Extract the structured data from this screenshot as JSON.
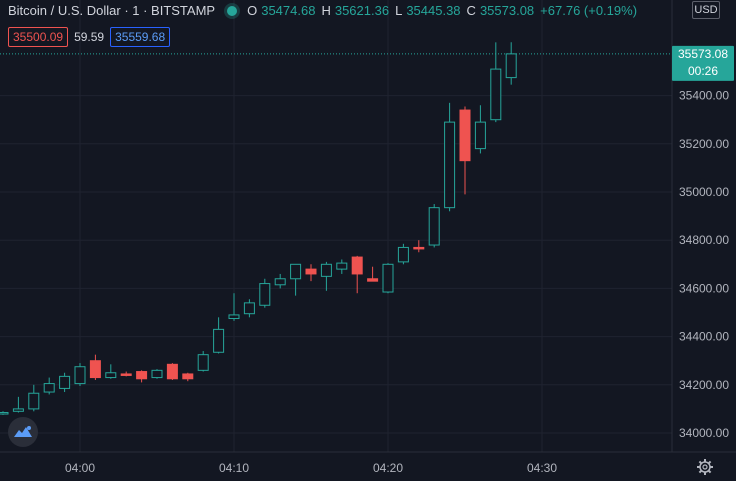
{
  "header": {
    "symbol_title": "Bitcoin / U.S. Dollar · 1 · BITSTAMP",
    "o_label": "O",
    "o_value": "35474.68",
    "h_label": "H",
    "h_value": "35621.36",
    "l_label": "L",
    "l_value": "35445.38",
    "c_label": "C",
    "c_value": "35573.08",
    "change": "+67.76 (+0.19%)",
    "bid": "35500.09",
    "spread": "59.59",
    "ask": "35559.68",
    "currency": "USD"
  },
  "price_tag": {
    "value": "35573.08",
    "countdown": "00:26"
  },
  "colors": {
    "up": "#26a69a",
    "down": "#ef5350",
    "background": "#131722",
    "grid": "#1f2330"
  },
  "icons": [
    "tradingview-logo-icon",
    "settings-gear-icon",
    "status-dot-icon"
  ],
  "chart_data": {
    "type": "candlestick",
    "y_ticks": [
      "34000.00",
      "34200.00",
      "34400.00",
      "34600.00",
      "34800.00",
      "35000.00",
      "35200.00",
      "35400.00"
    ],
    "y_tick_values": [
      34000,
      34200,
      34400,
      34600,
      34800,
      35000,
      35200,
      35400
    ],
    "x_ticks": [
      "04:00",
      "04:10",
      "04:20",
      "04:30"
    ],
    "x_tick_minutes": [
      0,
      10,
      20,
      30
    ],
    "ylim": [
      33900,
      35680
    ],
    "last_price": 35573.08,
    "candles": [
      {
        "t": -5,
        "o": 34080,
        "h": 34090,
        "l": 34075,
        "c": 34085
      },
      {
        "t": -4,
        "o": 34090,
        "h": 34150,
        "l": 34085,
        "c": 34100
      },
      {
        "t": -3,
        "o": 34100,
        "h": 34200,
        "l": 34090,
        "c": 34165
      },
      {
        "t": -2,
        "o": 34170,
        "h": 34230,
        "l": 34160,
        "c": 34205
      },
      {
        "t": -1,
        "o": 34185,
        "h": 34250,
        "l": 34170,
        "c": 34235
      },
      {
        "t": 0,
        "o": 34205,
        "h": 34290,
        "l": 34195,
        "c": 34275
      },
      {
        "t": 1,
        "o": 34300,
        "h": 34325,
        "l": 34220,
        "c": 34230
      },
      {
        "t": 2,
        "o": 34230,
        "h": 34285,
        "l": 34225,
        "c": 34250
      },
      {
        "t": 3,
        "o": 34245,
        "h": 34255,
        "l": 34235,
        "c": 34240
      },
      {
        "t": 4,
        "o": 34255,
        "h": 34260,
        "l": 34210,
        "c": 34225
      },
      {
        "t": 5,
        "o": 34230,
        "h": 34265,
        "l": 34225,
        "c": 34260
      },
      {
        "t": 6,
        "o": 34285,
        "h": 34290,
        "l": 34220,
        "c": 34225
      },
      {
        "t": 7,
        "o": 34245,
        "h": 34250,
        "l": 34215,
        "c": 34225
      },
      {
        "t": 8,
        "o": 34260,
        "h": 34340,
        "l": 34255,
        "c": 34325
      },
      {
        "t": 9,
        "o": 34335,
        "h": 34480,
        "l": 34330,
        "c": 34430
      },
      {
        "t": 10,
        "o": 34475,
        "h": 34580,
        "l": 34465,
        "c": 34490
      },
      {
        "t": 11,
        "o": 34495,
        "h": 34555,
        "l": 34480,
        "c": 34540
      },
      {
        "t": 12,
        "o": 34530,
        "h": 34640,
        "l": 34520,
        "c": 34620
      },
      {
        "t": 13,
        "o": 34615,
        "h": 34660,
        "l": 34600,
        "c": 34640
      },
      {
        "t": 14,
        "o": 34640,
        "h": 34700,
        "l": 34570,
        "c": 34700
      },
      {
        "t": 15,
        "o": 34680,
        "h": 34700,
        "l": 34630,
        "c": 34660
      },
      {
        "t": 16,
        "o": 34650,
        "h": 34710,
        "l": 34590,
        "c": 34700
      },
      {
        "t": 17,
        "o": 34680,
        "h": 34720,
        "l": 34660,
        "c": 34705
      },
      {
        "t": 18,
        "o": 34730,
        "h": 34735,
        "l": 34580,
        "c": 34660
      },
      {
        "t": 19,
        "o": 34640,
        "h": 34690,
        "l": 34630,
        "c": 34630
      },
      {
        "t": 20,
        "o": 34585,
        "h": 34705,
        "l": 34580,
        "c": 34700
      },
      {
        "t": 21,
        "o": 34710,
        "h": 34785,
        "l": 34700,
        "c": 34770
      },
      {
        "t": 22,
        "o": 34770,
        "h": 34800,
        "l": 34750,
        "c": 34765
      },
      {
        "t": 23,
        "o": 34780,
        "h": 34950,
        "l": 34770,
        "c": 34935
      },
      {
        "t": 24,
        "o": 34935,
        "h": 35370,
        "l": 34920,
        "c": 35290
      },
      {
        "t": 25,
        "o": 35340,
        "h": 35355,
        "l": 34990,
        "c": 35130
      },
      {
        "t": 26,
        "o": 35180,
        "h": 35360,
        "l": 35160,
        "c": 35290
      },
      {
        "t": 27,
        "o": 35300,
        "h": 35621,
        "l": 35290,
        "c": 35510
      },
      {
        "t": 28,
        "o": 35474.68,
        "h": 35621.36,
        "l": 35445.38,
        "c": 35573.08
      }
    ]
  }
}
